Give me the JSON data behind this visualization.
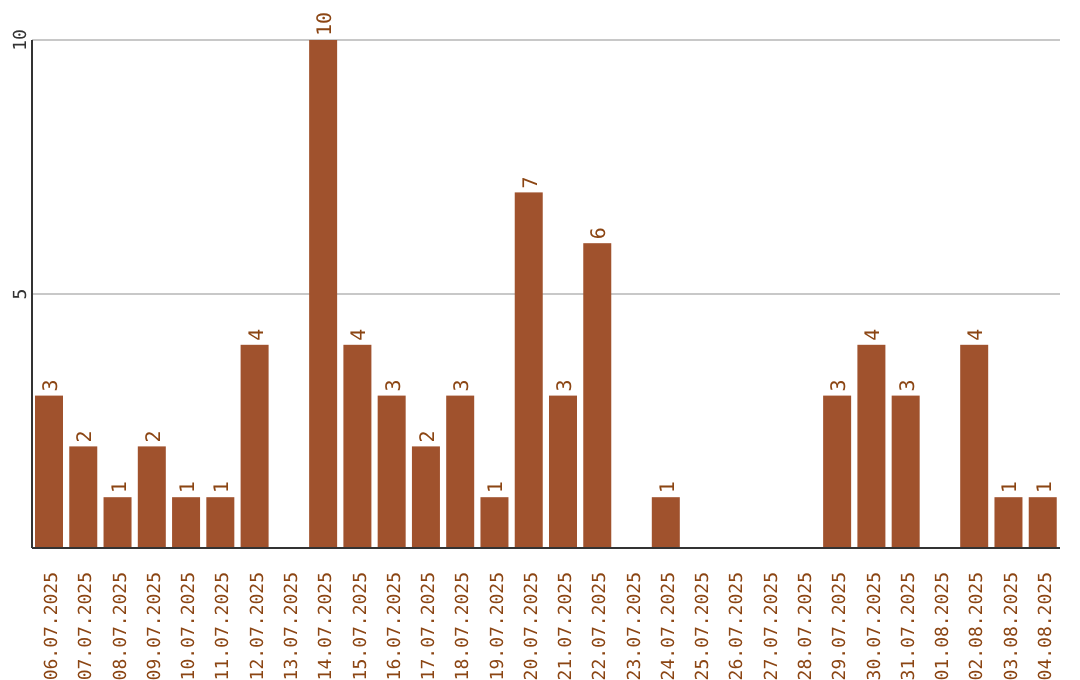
{
  "chart_data": {
    "type": "bar",
    "categories": [
      "06.07.2025",
      "07.07.2025",
      "08.07.2025",
      "09.07.2025",
      "10.07.2025",
      "11.07.2025",
      "12.07.2025",
      "13.07.2025",
      "14.07.2025",
      "15.07.2025",
      "16.07.2025",
      "17.07.2025",
      "18.07.2025",
      "19.07.2025",
      "20.07.2025",
      "21.07.2025",
      "22.07.2025",
      "23.07.2025",
      "24.07.2025",
      "25.07.2025",
      "26.07.2025",
      "27.07.2025",
      "28.07.2025",
      "29.07.2025",
      "30.07.2025",
      "31.07.2025",
      "01.08.2025",
      "02.08.2025",
      "03.08.2025",
      "04.08.2025"
    ],
    "values": [
      3,
      2,
      1,
      2,
      1,
      1,
      4,
      0,
      10,
      4,
      3,
      2,
      3,
      1,
      7,
      3,
      6,
      0,
      1,
      0,
      0,
      0,
      0,
      3,
      4,
      3,
      0,
      4,
      1,
      1
    ],
    "value_labels": [
      "3",
      "2",
      "1",
      "2",
      "1",
      "1",
      "4",
      null,
      "10",
      "4",
      "3",
      "2",
      "3",
      "1",
      "7",
      "3",
      "6",
      null,
      "1",
      null,
      null,
      null,
      null,
      "3",
      "4",
      "3",
      null,
      "4",
      "1",
      "1"
    ],
    "color": "#a0522d",
    "ylim": [
      0,
      10
    ],
    "yticks": [
      {
        "value": 0,
        "label": null
      },
      5,
      10
    ],
    "grid": "y"
  }
}
